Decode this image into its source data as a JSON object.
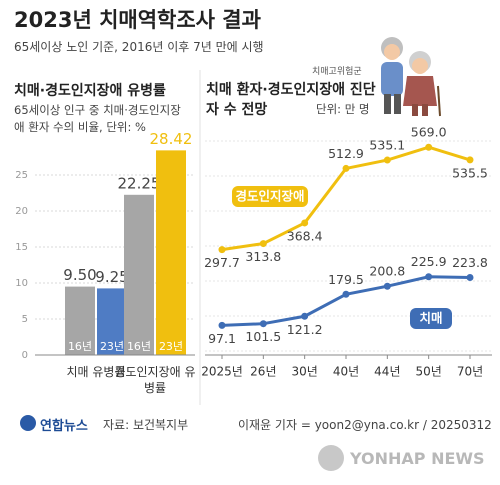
{
  "header": {
    "title": "2023년 치매역학조사 결과",
    "subtitle": "65세이상 노인 기준, 2016년 이후 7년 만에 시행"
  },
  "chart_data": [
    {
      "type": "bar",
      "title": "치매·경도인지장애 유병률",
      "subtitle": "65세이상 인구 중 치매·경도인지장애 환자 수의 비율, 단위: %",
      "categories": [
        "치매 유병률",
        "경도인지장애 유병률"
      ],
      "series": [
        {
          "name": "16년",
          "colors": [
            "#a6a6a6",
            "#a6a6a6"
          ],
          "values": [
            9.5,
            22.25
          ],
          "value_labels": [
            "9.50",
            "22.25"
          ]
        },
        {
          "name": "23년",
          "colors": [
            "#4f7cc4",
            "#f0bf0f"
          ],
          "values": [
            9.25,
            28.42
          ],
          "value_labels": [
            "9.25",
            "28.42"
          ]
        }
      ],
      "ylim": [
        0,
        30
      ],
      "yticks": [
        0,
        5,
        10,
        15,
        20,
        25
      ],
      "grid": true
    },
    {
      "type": "line",
      "title": "치매 환자·경도인지장애 진단자 수 전망",
      "unit": "단위: 만 명",
      "annotation": "치매고위험군",
      "categories": [
        "2025년",
        "26년",
        "30년",
        "40년",
        "44년",
        "50년",
        "70년"
      ],
      "series": [
        {
          "name": "경도인지장애",
          "color": "#f0bf0f",
          "values": [
            297.7,
            313.8,
            368.4,
            512.9,
            535.1,
            569.0,
            535.5
          ],
          "value_labels": [
            "297.7",
            "313.8",
            "368.4",
            "512.9",
            "535.1",
            "569.0",
            "535.5"
          ]
        },
        {
          "name": "치매",
          "color": "#3e6db5",
          "values": [
            97.1,
            101.5,
            121.2,
            179.5,
            200.8,
            225.9,
            223.8
          ],
          "value_labels": [
            "97.1",
            "101.5",
            "121.2",
            "179.5",
            "200.8",
            "225.9",
            "223.8"
          ]
        }
      ],
      "ylim": [
        0,
        620
      ]
    }
  ],
  "footer": {
    "logo": "연합뉴스",
    "source": "자료: 보건복지부",
    "credit": "이재윤 기자 = yoon2@yna.co.kr / 20250312",
    "watermark": "YONHAP NEWS"
  }
}
